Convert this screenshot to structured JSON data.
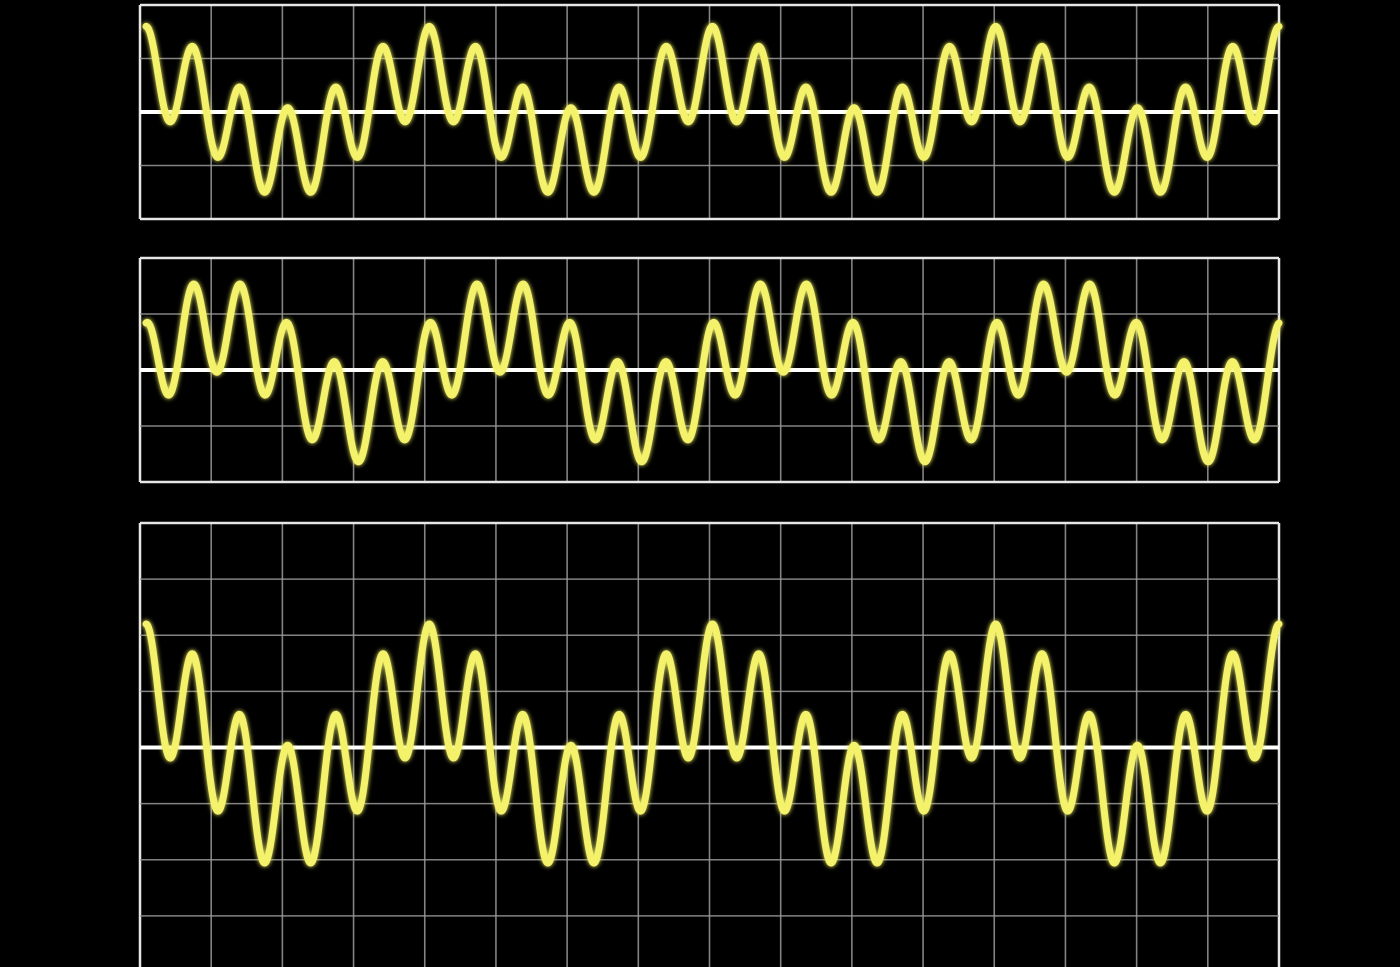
{
  "chart_data": [
    {
      "type": "line",
      "panel": "top",
      "grid": true,
      "x_divisions": 16,
      "y_divisions": 4,
      "xlim": [
        0,
        16
      ],
      "ylim": [
        -1,
        1
      ],
      "series": [
        {
          "color": "#f3f26a",
          "components": [
            {
              "amplitude": 0.42,
              "cycles": 24,
              "phase_deg": 90
            },
            {
              "amplitude": 0.38,
              "cycles": 4,
              "phase_deg": 90
            }
          ]
        }
      ]
    },
    {
      "type": "line",
      "panel": "middle",
      "grid": true,
      "x_divisions": 16,
      "y_divisions": 4,
      "xlim": [
        0,
        16
      ],
      "ylim": [
        -1,
        1
      ],
      "series": [
        {
          "color": "#f3f26a",
          "components": [
            {
              "amplitude": 0.42,
              "cycles": 24,
              "phase_deg": 90
            },
            {
              "amplitude": 0.4,
              "cycles": 4,
              "phase_deg": 0
            }
          ]
        }
      ]
    },
    {
      "type": "line",
      "panel": "bottom",
      "grid": true,
      "x_divisions": 16,
      "y_divisions": 8,
      "xlim": [
        0,
        16
      ],
      "ylim": [
        -1,
        1
      ],
      "series": [
        {
          "color": "#f3f26a",
          "components": [
            {
              "amplitude": 0.28,
              "cycles": 24,
              "phase_deg": 90
            },
            {
              "amplitude": 0.27,
              "cycles": 4,
              "phase_deg": 90
            }
          ]
        }
      ]
    }
  ],
  "colors": {
    "background": "#000000",
    "grid": "#9a9a9a",
    "baseline": "#ffffff",
    "wave": "#f3f26a"
  }
}
